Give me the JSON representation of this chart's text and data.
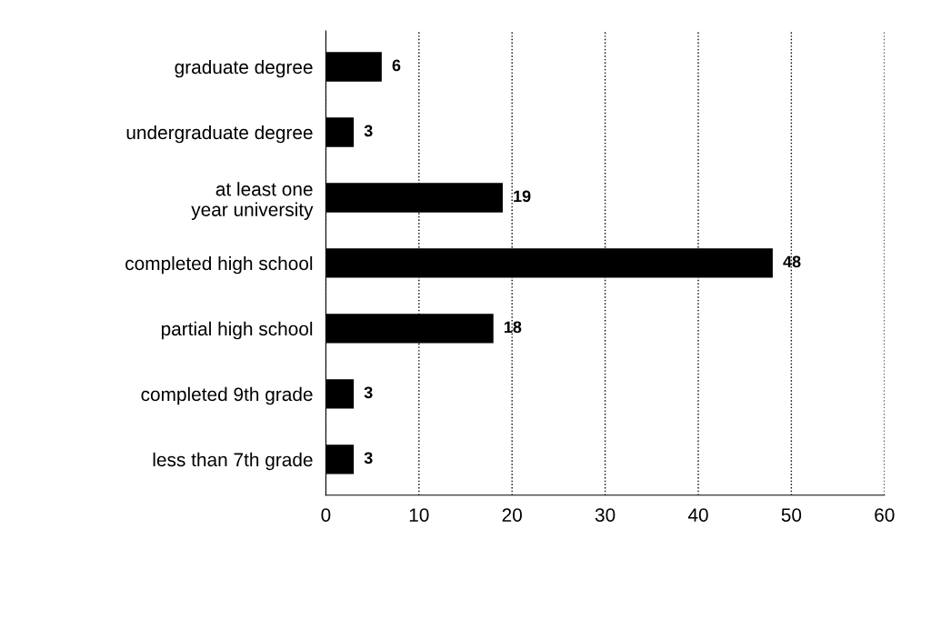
{
  "chart_data": {
    "type": "bar",
    "orientation": "horizontal",
    "categories": [
      "graduate degree",
      "undergraduate degree",
      "at least one\nyear university",
      "completed high school",
      "partial high school",
      "completed 9th grade",
      "less than 7th grade"
    ],
    "values": [
      6,
      3,
      19,
      48,
      18,
      3,
      3
    ],
    "color": "#000000",
    "xlim": [
      0,
      60
    ],
    "xticks": [
      0,
      10,
      20,
      30,
      40,
      50,
      60
    ],
    "grid": "x",
    "data_labels": true
  }
}
